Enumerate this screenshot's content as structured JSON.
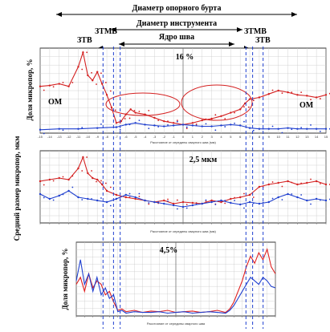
{
  "header": {
    "support_collar_diameter": "Диаметр опорного бурта",
    "tool_diameter": "Диаметр инструмента",
    "weld_core": "Ядро шва",
    "ztmv_left": "ЗТМВ",
    "ztv_left": "ЗТВ",
    "ztmv_right": "ЗТМВ",
    "ztv_right": "ЗТВ"
  },
  "chart_data": [
    {
      "type": "line",
      "ylabel": "Доля микропор, %",
      "xlabel": "Расстояние от середины сварного шва (мм)",
      "annotation": "16 %",
      "region_left": "ОМ",
      "region_right": "ОМ",
      "xlim": [
        -15,
        15
      ],
      "x_ticks": [
        "-15",
        "-14",
        "-13",
        "-12",
        "-11",
        "-10",
        "-9",
        "-8",
        "-7",
        "-6",
        "-5",
        "-4",
        "-3",
        "-2",
        "-1",
        "0",
        "1",
        "2",
        "3",
        "4",
        "5",
        "6",
        "7",
        "8",
        "9",
        "10",
        "11",
        "12",
        "13",
        "14",
        "15"
      ],
      "grid": true,
      "series": [
        {
          "color": "#d42020",
          "x": [
            -15,
            -14,
            -13,
            -12,
            -11,
            -10.5,
            -10,
            -9.5,
            -9,
            -8.5,
            -8,
            -7.5,
            -7,
            -6.5,
            -6,
            -5.5,
            -5,
            -4,
            -3,
            -2,
            -1,
            0,
            1,
            2,
            3,
            4,
            5,
            6,
            6.5,
            7,
            8,
            9,
            10,
            11,
            12,
            13,
            14,
            15
          ],
          "y": [
            0.55,
            0.56,
            0.58,
            0.55,
            0.78,
            0.95,
            0.68,
            0.62,
            0.72,
            0.58,
            0.45,
            0.3,
            0.12,
            0.14,
            0.22,
            0.28,
            0.24,
            0.22,
            0.18,
            0.14,
            0.12,
            0.1,
            0.12,
            0.15,
            0.17,
            0.2,
            0.24,
            0.28,
            0.35,
            0.4,
            0.42,
            0.46,
            0.5,
            0.48,
            0.45,
            0.44,
            0.42,
            0.45
          ]
        },
        {
          "color": "#1f3fcf",
          "x": [
            -15,
            -13,
            -11,
            -9,
            -7,
            -6,
            -5,
            -4,
            -3,
            -2,
            -1,
            0,
            1,
            2,
            3,
            4,
            5,
            6,
            7,
            8,
            9,
            10,
            11,
            12,
            13,
            14,
            15
          ],
          "y": [
            0.04,
            0.05,
            0.05,
            0.06,
            0.07,
            0.1,
            0.12,
            0.1,
            0.09,
            0.08,
            0.09,
            0.1,
            0.09,
            0.08,
            0.08,
            0.09,
            0.1,
            0.09,
            0.06,
            0.05,
            0.05,
            0.05,
            0.06,
            0.05,
            0.05,
            0.05,
            0.05
          ]
        }
      ]
    },
    {
      "type": "line",
      "ylabel": "Средний размер микропор, мкм",
      "xlabel": "Расстояние от середины сварного шва (мм)",
      "annotation": "2,5 мкм",
      "xlim": [
        -15,
        15
      ],
      "grid": true,
      "series": [
        {
          "color": "#d42020",
          "x": [
            -15,
            -14,
            -13,
            -12,
            -11,
            -10.5,
            -10,
            -9.5,
            -9,
            -8.5,
            -8,
            -7,
            -6,
            -5,
            -4,
            -3,
            -2,
            -1,
            0,
            1,
            2,
            3,
            4,
            5,
            6,
            7,
            8,
            9,
            10,
            11,
            12,
            13,
            14,
            15
          ],
          "y": [
            0.62,
            0.64,
            0.66,
            0.64,
            0.78,
            0.92,
            0.72,
            0.66,
            0.64,
            0.58,
            0.5,
            0.45,
            0.42,
            0.4,
            0.38,
            0.36,
            0.38,
            0.34,
            0.36,
            0.35,
            0.34,
            0.38,
            0.36,
            0.4,
            0.42,
            0.45,
            0.55,
            0.58,
            0.6,
            0.62,
            0.58,
            0.6,
            0.62,
            0.58
          ]
        },
        {
          "color": "#1f3fcf",
          "x": [
            -15,
            -14,
            -13,
            -12,
            -11,
            -10,
            -9,
            -8,
            -7,
            -6,
            -5,
            -4,
            -3,
            -2,
            -1,
            0,
            1,
            2,
            3,
            4,
            5,
            6,
            7,
            8,
            9,
            10,
            11,
            12,
            13,
            14,
            15
          ],
          "y": [
            0.46,
            0.4,
            0.44,
            0.5,
            0.42,
            0.4,
            0.38,
            0.36,
            0.4,
            0.45,
            0.42,
            0.38,
            0.36,
            0.34,
            0.32,
            0.3,
            0.32,
            0.34,
            0.36,
            0.38,
            0.35,
            0.33,
            0.36,
            0.34,
            0.36,
            0.42,
            0.46,
            0.42,
            0.38,
            0.4,
            0.38
          ]
        }
      ]
    },
    {
      "type": "line",
      "ylabel": "Доля микропор, %",
      "xlabel": "Расстояние от середины сварного шва",
      "annotation": "4,5%",
      "xlim": [
        -12,
        12
      ],
      "grid": true,
      "series": [
        {
          "color": "#e02020",
          "x": [
            -12,
            -11.5,
            -11,
            -10.5,
            -10,
            -9.5,
            -9,
            -8.5,
            -8,
            -7.5,
            -7,
            -6.5,
            -6,
            -5,
            -4,
            -3,
            -2,
            -1,
            0,
            1,
            2,
            3,
            4,
            5,
            6,
            6.5,
            7,
            7.5,
            8,
            8.5,
            9,
            9.5,
            10,
            10.5,
            11,
            11.5,
            12
          ],
          "y": [
            0.45,
            0.55,
            0.35,
            0.6,
            0.4,
            0.5,
            0.45,
            0.3,
            0.35,
            0.2,
            0.08,
            0.1,
            0.06,
            0.08,
            0.05,
            0.07,
            0.06,
            0.08,
            0.05,
            0.06,
            0.07,
            0.05,
            0.06,
            0.08,
            0.05,
            0.1,
            0.2,
            0.35,
            0.5,
            0.7,
            0.85,
            0.75,
            0.9,
            0.8,
            0.95,
            0.7,
            0.6
          ]
        },
        {
          "color": "#2040d0",
          "x": [
            -12,
            -11.5,
            -11,
            -10.5,
            -10,
            -9.5,
            -9,
            -8.5,
            -8,
            -7.5,
            -7,
            -6.5,
            -6,
            -5,
            -4,
            -3,
            -2,
            -1,
            0,
            1,
            2,
            3,
            4,
            5,
            6,
            6.5,
            7,
            7.5,
            8,
            8.5,
            9,
            9.5,
            10,
            10.5,
            11,
            11.5,
            12
          ],
          "y": [
            0.5,
            0.8,
            0.45,
            0.6,
            0.35,
            0.55,
            0.3,
            0.4,
            0.25,
            0.3,
            0.06,
            0.08,
            0.04,
            0.06,
            0.05,
            0.05,
            0.06,
            0.04,
            0.05,
            0.06,
            0.04,
            0.05,
            0.06,
            0.05,
            0.04,
            0.08,
            0.15,
            0.25,
            0.35,
            0.45,
            0.55,
            0.5,
            0.45,
            0.55,
            0.5,
            0.42,
            0.4
          ]
        }
      ]
    }
  ]
}
